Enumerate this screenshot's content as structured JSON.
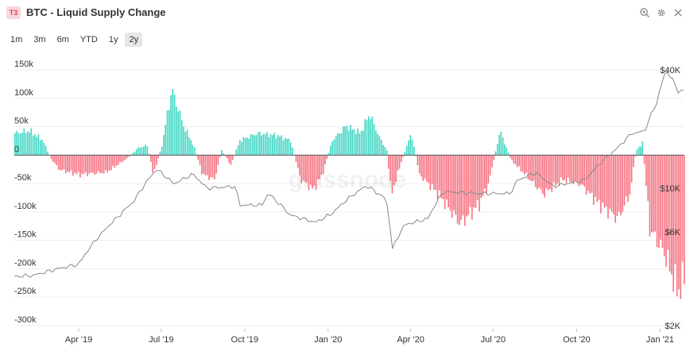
{
  "header": {
    "badge": "T3",
    "title": "BTC - Liquid Supply Change",
    "icons": [
      "zoom-icon",
      "gear-icon",
      "close-icon"
    ]
  },
  "toolbar": {
    "ranges": [
      "1m",
      "3m",
      "6m",
      "YTD",
      "1y",
      "2y"
    ],
    "active": "2y"
  },
  "watermark": "glassnode",
  "colors": {
    "positive": "#3fd6c3",
    "negative": "#f5707f",
    "price": "#888888",
    "zero_line": "#555555"
  },
  "chart_data": {
    "type": "bar",
    "x_axis": {
      "start": "2019-01-20",
      "end": "2021-01-27",
      "tick_labels": [
        "Apr '19",
        "Jul '19",
        "Oct '19",
        "Jan '20",
        "Apr '20",
        "Jul '20",
        "Oct '20",
        "Jan '21"
      ],
      "tick_dates": [
        "2019-04-01",
        "2019-07-01",
        "2019-10-01",
        "2020-01-01",
        "2020-04-01",
        "2020-07-01",
        "2020-10-01",
        "2021-01-01"
      ]
    },
    "y_left": {
      "ticks": [
        150000,
        100000,
        50000,
        0,
        -50000,
        -100000,
        -150000,
        -200000,
        -250000,
        -300000
      ],
      "tick_labels": [
        "150k",
        "100k",
        "50k",
        "0",
        "-50k",
        "-100k",
        "-150k",
        "-200k",
        "-250k",
        "-300k"
      ],
      "range": [
        -300000,
        150000
      ]
    },
    "y_right": {
      "scale": "log",
      "tick_labels": [
        "$40K",
        "$10K",
        "$6K",
        "$2K"
      ],
      "ticks": [
        40000,
        10000,
        6000,
        2000
      ],
      "range": [
        2000,
        40000
      ]
    },
    "series": [
      {
        "kind": "bars",
        "axis": "left",
        "keypoints": [
          [
            "2019-01-20",
            45000
          ],
          [
            "2019-02-05",
            50000
          ],
          [
            "2019-02-20",
            30000
          ],
          [
            "2019-02-28",
            -5000
          ],
          [
            "2019-03-10",
            -30000
          ],
          [
            "2019-04-01",
            -40000
          ],
          [
            "2019-05-01",
            -35000
          ],
          [
            "2019-05-25",
            -5000
          ],
          [
            "2019-06-05",
            15000
          ],
          [
            "2019-06-15",
            20000
          ],
          [
            "2019-06-22",
            -40000
          ],
          [
            "2019-07-01",
            20000
          ],
          [
            "2019-07-12",
            135000
          ],
          [
            "2019-07-25",
            60000
          ],
          [
            "2019-08-05",
            20000
          ],
          [
            "2019-08-15",
            -40000
          ],
          [
            "2019-08-28",
            -50000
          ],
          [
            "2019-09-05",
            10000
          ],
          [
            "2019-09-15",
            -20000
          ],
          [
            "2019-09-25",
            30000
          ],
          [
            "2019-10-15",
            45000
          ],
          [
            "2019-11-05",
            40000
          ],
          [
            "2019-11-20",
            30000
          ],
          [
            "2019-12-01",
            -50000
          ],
          [
            "2019-12-15",
            -70000
          ],
          [
            "2019-12-25",
            -40000
          ],
          [
            "2020-01-05",
            30000
          ],
          [
            "2020-01-20",
            60000
          ],
          [
            "2020-02-05",
            45000
          ],
          [
            "2020-02-15",
            85000
          ],
          [
            "2020-02-25",
            40000
          ],
          [
            "2020-03-05",
            10000
          ],
          [
            "2020-03-10",
            -80000
          ],
          [
            "2020-03-20",
            -20000
          ],
          [
            "2020-04-01",
            45000
          ],
          [
            "2020-04-10",
            -40000
          ],
          [
            "2020-05-01",
            -80000
          ],
          [
            "2020-05-25",
            -140000
          ],
          [
            "2020-06-15",
            -100000
          ],
          [
            "2020-06-25",
            -60000
          ],
          [
            "2020-07-08",
            50000
          ],
          [
            "2020-07-20",
            -10000
          ],
          [
            "2020-08-05",
            -40000
          ],
          [
            "2020-08-25",
            -80000
          ],
          [
            "2020-09-15",
            -50000
          ],
          [
            "2020-10-05",
            -60000
          ],
          [
            "2020-10-25",
            -100000
          ],
          [
            "2020-11-15",
            -130000
          ],
          [
            "2020-11-28",
            -80000
          ],
          [
            "2020-12-05",
            10000
          ],
          [
            "2020-12-12",
            25000
          ],
          [
            "2020-12-20",
            -150000
          ],
          [
            "2021-01-05",
            -200000
          ],
          [
            "2021-01-20",
            -280000
          ],
          [
            "2021-01-27",
            -250000
          ]
        ]
      },
      {
        "name": "",
        "kind": "line",
        "axis": "right",
        "keypoints": [
          [
            "2019-01-20",
            3550
          ],
          [
            "2019-02-10",
            3600
          ],
          [
            "2019-03-10",
            3900
          ],
          [
            "2019-04-01",
            4100
          ],
          [
            "2019-04-15",
            5100
          ],
          [
            "2019-05-15",
            7200
          ],
          [
            "2019-06-01",
            8600
          ],
          [
            "2019-06-26",
            12500
          ],
          [
            "2019-07-15",
            10500
          ],
          [
            "2019-08-05",
            11800
          ],
          [
            "2019-08-20",
            10000
          ],
          [
            "2019-09-20",
            10200
          ],
          [
            "2019-09-26",
            8200
          ],
          [
            "2019-10-20",
            8200
          ],
          [
            "2019-10-27",
            9400
          ],
          [
            "2019-11-20",
            7300
          ],
          [
            "2019-12-18",
            6700
          ],
          [
            "2020-01-05",
            7400
          ],
          [
            "2020-01-20",
            8600
          ],
          [
            "2020-02-12",
            10300
          ],
          [
            "2020-03-05",
            8800
          ],
          [
            "2020-03-12",
            4900
          ],
          [
            "2020-03-25",
            6500
          ],
          [
            "2020-04-20",
            7000
          ],
          [
            "2020-05-07",
            9600
          ],
          [
            "2020-06-15",
            9400
          ],
          [
            "2020-07-20",
            9400
          ],
          [
            "2020-07-28",
            11000
          ],
          [
            "2020-08-17",
            12000
          ],
          [
            "2020-09-05",
            10200
          ],
          [
            "2020-10-10",
            11000
          ],
          [
            "2020-10-28",
            13500
          ],
          [
            "2020-11-15",
            16000
          ],
          [
            "2020-12-01",
            19000
          ],
          [
            "2020-12-15",
            19500
          ],
          [
            "2020-12-28",
            27000
          ],
          [
            "2021-01-08",
            40000
          ],
          [
            "2021-01-14",
            36000
          ],
          [
            "2021-01-21",
            31000
          ],
          [
            "2021-01-27",
            31500
          ]
        ]
      }
    ],
    "grid": true,
    "legend": "none"
  }
}
